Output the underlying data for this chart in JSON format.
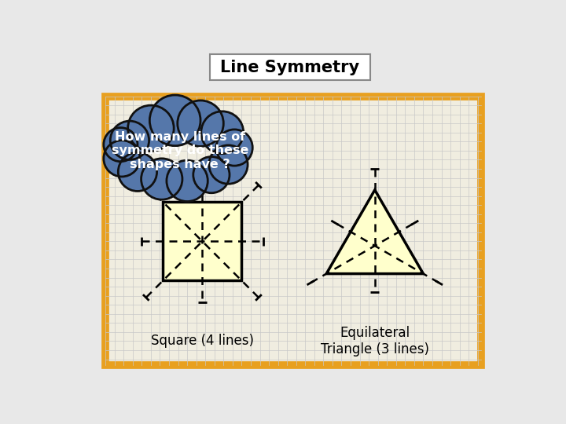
{
  "title": "Line Symmetry",
  "question_text": "How many lines of\nsymmetry do these\nshapes have ?",
  "square_label": "Square (4 lines)",
  "triangle_label": "Equilateral\nTriangle (3 lines)",
  "bg_color": "#e8e8e8",
  "board_bg": "#f0ede0",
  "board_border_color": "#e8a020",
  "grid_color": "#c8c8c8",
  "shape_fill": "#ffffcc",
  "shape_edge": "#000000",
  "cloud_fill": "#5577aa",
  "cloud_edge": "#111111",
  "title_box_color": "#ffffff",
  "title_box_edge": "#888888",
  "sym_dashed": "#000000",
  "sym_solid": "#000000"
}
